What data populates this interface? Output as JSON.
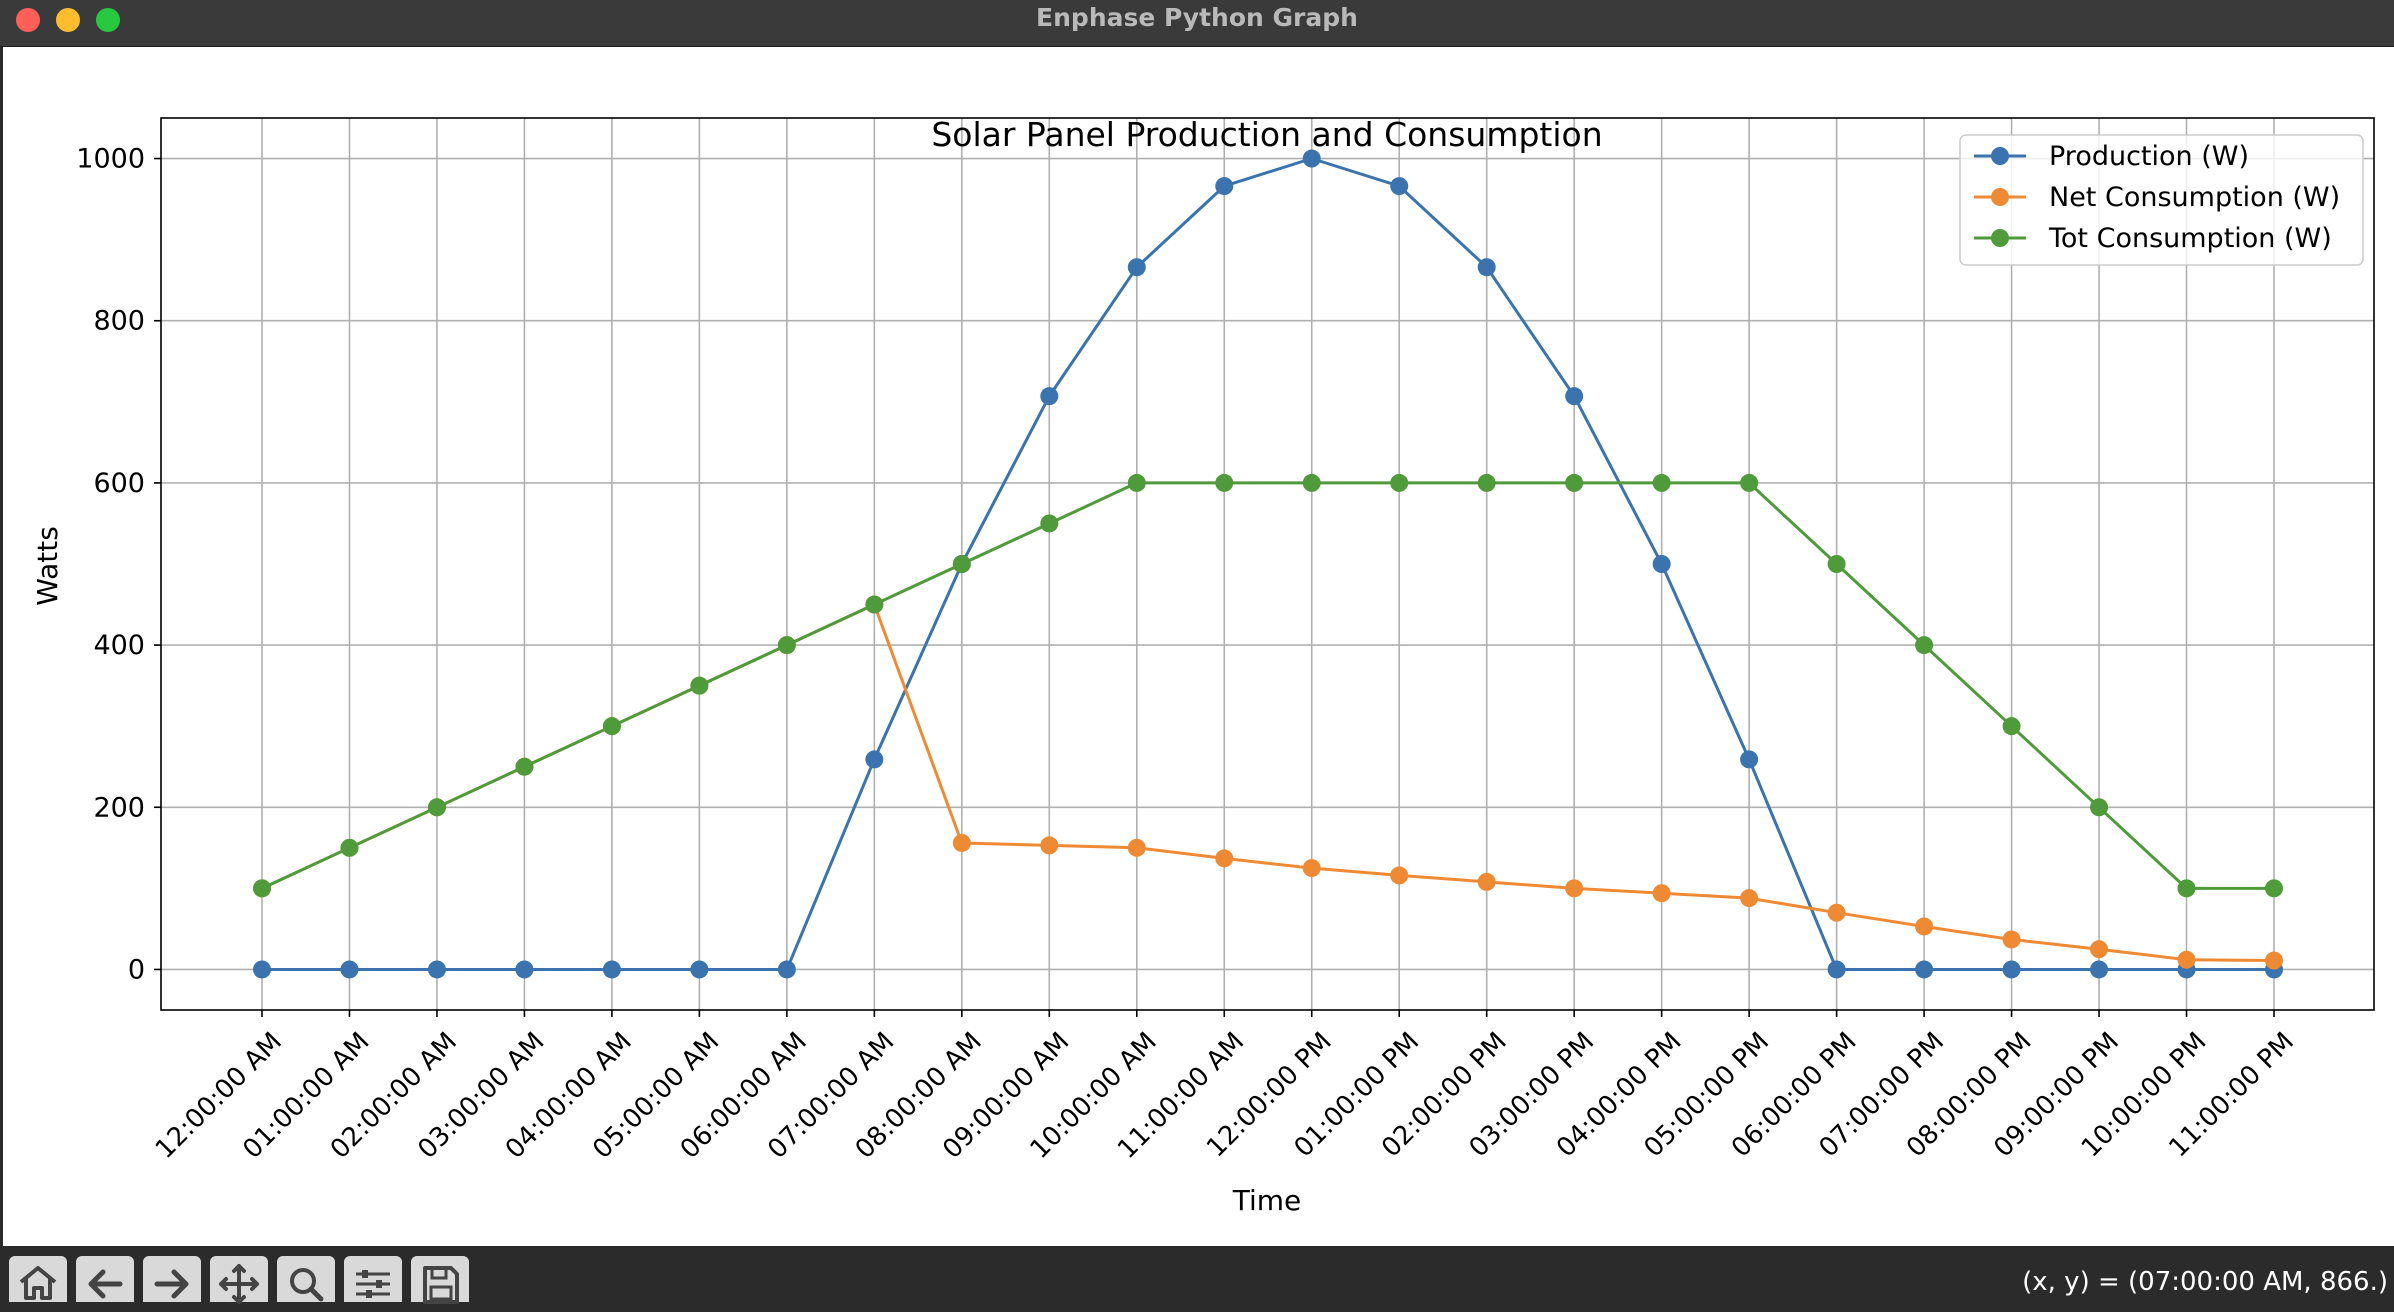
{
  "window": {
    "title": "Enphase Python Graph"
  },
  "colors": {
    "production": "#3a73ad",
    "net": "#ef8a34",
    "total": "#4f9a3a"
  },
  "chart_data": {
    "type": "line",
    "title": "Solar Panel Production and Consumption",
    "xlabel": "Time",
    "ylabel": "Watts",
    "ylim": [
      -50,
      1050
    ],
    "yticks": [
      0,
      200,
      400,
      600,
      800,
      1000
    ],
    "grid": true,
    "legend_position": "top-right",
    "x": [
      "12:00:00 AM",
      "01:00:00 AM",
      "02:00:00 AM",
      "03:00:00 AM",
      "04:00:00 AM",
      "05:00:00 AM",
      "06:00:00 AM",
      "07:00:00 AM",
      "08:00:00 AM",
      "09:00:00 AM",
      "10:00:00 AM",
      "11:00:00 AM",
      "12:00:00 PM",
      "01:00:00 PM",
      "02:00:00 PM",
      "03:00:00 PM",
      "04:00:00 PM",
      "05:00:00 PM",
      "06:00:00 PM",
      "07:00:00 PM",
      "08:00:00 PM",
      "09:00:00 PM",
      "10:00:00 PM",
      "11:00:00 PM"
    ],
    "series": [
      {
        "name": "Production (W)",
        "color_key": "production",
        "values": [
          0,
          0,
          0,
          0,
          0,
          0,
          0,
          259,
          500,
          707,
          866,
          966,
          1000,
          966,
          866,
          707,
          500,
          259,
          0,
          0,
          0,
          0,
          0,
          0
        ]
      },
      {
        "name": "Net Consumption (W)",
        "color_key": "net",
        "values": [
          100,
          150,
          200,
          250,
          300,
          350,
          400,
          450,
          156,
          153,
          150,
          137,
          125,
          116,
          108,
          100,
          94,
          88,
          70,
          53,
          37,
          25,
          12,
          11
        ]
      },
      {
        "name": "Tot Consumption (W)",
        "color_key": "total",
        "values": [
          100,
          150,
          200,
          250,
          300,
          350,
          400,
          450,
          500,
          550,
          600,
          600,
          600,
          600,
          600,
          600,
          600,
          600,
          500,
          400,
          300,
          200,
          100,
          100
        ]
      }
    ]
  },
  "toolbar": {
    "buttons": [
      {
        "name": "home-button",
        "icon": "home-icon"
      },
      {
        "name": "back-button",
        "icon": "arrow-left-icon"
      },
      {
        "name": "forward-button",
        "icon": "arrow-right-icon"
      },
      {
        "name": "pan-button",
        "icon": "move-icon"
      },
      {
        "name": "zoom-button",
        "icon": "magnifier-icon"
      },
      {
        "name": "configure-subplots-button",
        "icon": "sliders-icon"
      },
      {
        "name": "save-button",
        "icon": "save-icon"
      }
    ],
    "coords_text": "(x, y) = (07:00:00 AM, 866.)"
  }
}
